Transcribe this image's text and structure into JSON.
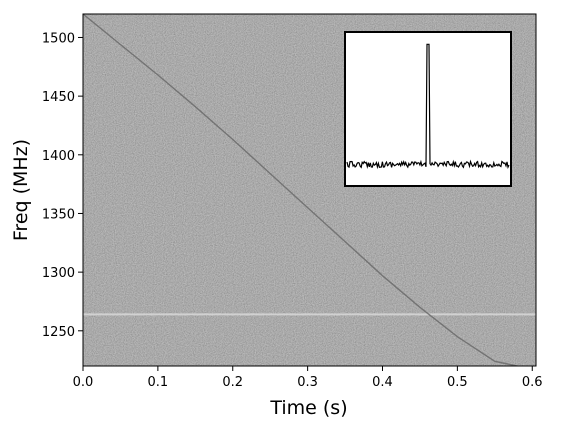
{
  "chart_data": {
    "type": "heatmap",
    "title": "",
    "xlabel": "Time (s)",
    "ylabel": "Freq (MHz)",
    "xlim": [
      0.0,
      0.605
    ],
    "ylim": [
      1220,
      1520
    ],
    "x_ticks": [
      0.0,
      0.1,
      0.2,
      0.3,
      0.4,
      0.5,
      0.6
    ],
    "x_tick_labels": [
      "0.0",
      "0.1",
      "0.2",
      "0.3",
      "0.4",
      "0.5",
      "0.6"
    ],
    "y_ticks": [
      1250,
      1300,
      1350,
      1400,
      1450,
      1500
    ],
    "y_tick_labels": [
      "1250",
      "1300",
      "1350",
      "1400",
      "1450",
      "1500"
    ],
    "colormap": "gray",
    "background_color": "#c4c4c4",
    "signal_color": "#6a6a6a",
    "dispersed_signal": {
      "x": [
        0.0,
        0.05,
        0.1,
        0.15,
        0.2,
        0.25,
        0.3,
        0.35,
        0.4,
        0.45,
        0.5,
        0.55,
        0.58
      ],
      "y": [
        1520,
        1494,
        1468,
        1441,
        1413,
        1384,
        1355,
        1326,
        1297,
        1270,
        1245,
        1224,
        1220
      ]
    },
    "rfi_band_mhz": 1264,
    "inset": {
      "type": "line",
      "description_of_position": "top-right",
      "peak_index": 0.5,
      "baseline": 0.1,
      "peak": 1.0
    }
  }
}
